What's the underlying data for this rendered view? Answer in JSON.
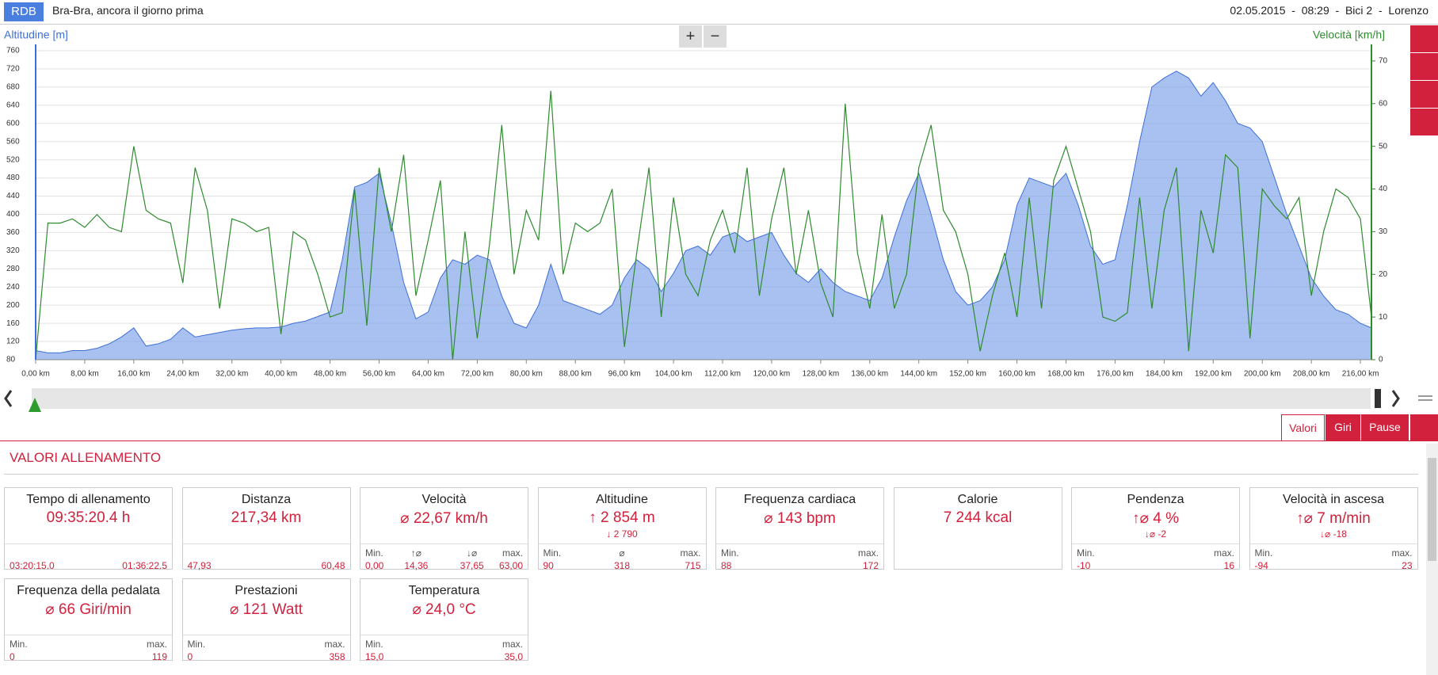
{
  "header": {
    "badge": "RDB",
    "title": "Bra-Bra, ancora il giorno prima",
    "info": "02.05.2015  -  08:29  -  Bici 2  -  Lorenzo"
  },
  "controls": {
    "zoom_in": "+",
    "zoom_out": "−"
  },
  "chart_data": {
    "type": "area",
    "ylabel": "Altitudine [m]",
    "y2label": "Velocità [km/h]",
    "xlim": [
      0,
      217.8
    ],
    "ylim": [
      80,
      760
    ],
    "y2lim": [
      0,
      72.4
    ],
    "grid": true,
    "xticks": [
      {
        "value": 0,
        "label": "0,00 km"
      },
      {
        "value": 8,
        "label": "8,00 km"
      },
      {
        "value": 16,
        "label": "16,00 km"
      },
      {
        "value": 24,
        "label": "24,00 km"
      },
      {
        "value": 32,
        "label": "32,00 km"
      },
      {
        "value": 40,
        "label": "40,00 km"
      },
      {
        "value": 48,
        "label": "48,00 km"
      },
      {
        "value": 56,
        "label": "56,00 km"
      },
      {
        "value": 64,
        "label": "64,00 km"
      },
      {
        "value": 72,
        "label": "72,00 km"
      },
      {
        "value": 80,
        "label": "80,00 km"
      },
      {
        "value": 88,
        "label": "88,00 km"
      },
      {
        "value": 96,
        "label": "96,00 km"
      },
      {
        "value": 104,
        "label": "104,00 km"
      },
      {
        "value": 112,
        "label": "112,00 km"
      },
      {
        "value": 120,
        "label": "120,00 km"
      },
      {
        "value": 128,
        "label": "128,00 km"
      },
      {
        "value": 136,
        "label": "136,00 km"
      },
      {
        "value": 144,
        "label": "144,00 km"
      },
      {
        "value": 152,
        "label": "152,00 km"
      },
      {
        "value": 160,
        "label": "160,00 km"
      },
      {
        "value": 168,
        "label": "168,00 km"
      },
      {
        "value": 176,
        "label": "176,00 km"
      },
      {
        "value": 184,
        "label": "184,00 km"
      },
      {
        "value": 192,
        "label": "192,00 km"
      },
      {
        "value": 200,
        "label": "200,00 km"
      },
      {
        "value": 208,
        "label": "208,00 km"
      },
      {
        "value": 216,
        "label": "216,00 km"
      }
    ],
    "yticks": [
      80,
      120,
      160,
      200,
      240,
      280,
      320,
      360,
      400,
      440,
      480,
      520,
      560,
      600,
      640,
      680,
      720,
      760
    ],
    "y2ticks": [
      0,
      10,
      20,
      30,
      40,
      50,
      60,
      70
    ],
    "x": [
      0,
      2,
      4,
      6,
      8,
      10,
      12,
      14,
      16,
      18,
      20,
      22,
      24,
      26,
      28,
      30,
      32,
      34,
      36,
      38,
      40,
      42,
      44,
      46,
      48,
      50,
      52,
      54,
      56,
      58,
      60,
      62,
      64,
      66,
      68,
      70,
      72,
      74,
      76,
      78,
      80,
      82,
      84,
      86,
      88,
      90,
      92,
      94,
      96,
      98,
      100,
      102,
      104,
      106,
      108,
      110,
      112,
      114,
      116,
      118,
      120,
      122,
      124,
      126,
      128,
      130,
      132,
      134,
      136,
      138,
      140,
      142,
      144,
      146,
      148,
      150,
      152,
      154,
      156,
      158,
      160,
      162,
      164,
      166,
      168,
      170,
      172,
      174,
      176,
      178,
      180,
      182,
      184,
      186,
      188,
      190,
      192,
      194,
      196,
      198,
      200,
      202,
      204,
      206,
      208,
      210,
      212,
      214,
      216,
      217.8
    ],
    "series": [
      {
        "name": "Altitudine",
        "type": "area",
        "color": "#3d6fd6",
        "values": [
          100,
          95,
          95,
          100,
          100,
          105,
          115,
          130,
          150,
          110,
          115,
          125,
          150,
          130,
          135,
          140,
          145,
          148,
          150,
          150,
          152,
          160,
          165,
          175,
          185,
          300,
          460,
          470,
          490,
          380,
          250,
          170,
          185,
          260,
          300,
          290,
          310,
          300,
          220,
          160,
          150,
          200,
          290,
          210,
          200,
          190,
          180,
          200,
          260,
          300,
          280,
          230,
          270,
          320,
          330,
          310,
          350,
          360,
          340,
          350,
          360,
          310,
          270,
          250,
          280,
          250,
          230,
          220,
          210,
          260,
          350,
          430,
          490,
          400,
          300,
          230,
          200,
          210,
          240,
          300,
          420,
          480,
          470,
          460,
          490,
          420,
          330,
          290,
          300,
          420,
          560,
          680,
          700,
          715,
          700,
          660,
          690,
          650,
          600,
          590,
          560,
          480,
          400,
          330,
          260,
          220,
          190,
          180,
          160,
          150
        ]
      },
      {
        "name": "Velocità",
        "type": "line",
        "axis": "y2",
        "color": "#2e8b2e",
        "values": [
          0,
          32,
          32,
          33,
          31,
          34,
          31,
          30,
          50,
          35,
          33,
          32,
          18,
          45,
          35,
          12,
          33,
          32,
          30,
          31,
          6,
          30,
          28,
          20,
          10,
          11,
          40,
          8,
          45,
          30,
          48,
          15,
          28,
          42,
          0,
          30,
          5,
          27,
          55,
          20,
          35,
          28,
          63,
          20,
          32,
          30,
          32,
          40,
          3,
          25,
          45,
          10,
          38,
          20,
          15,
          28,
          35,
          25,
          45,
          15,
          33,
          45,
          20,
          35,
          18,
          10,
          60,
          25,
          12,
          34,
          12,
          20,
          45,
          55,
          35,
          30,
          20,
          2,
          15,
          25,
          10,
          38,
          12,
          42,
          50,
          40,
          30,
          10,
          9,
          11,
          38,
          12,
          35,
          45,
          2,
          35,
          25,
          48,
          45,
          5,
          40,
          36,
          33,
          38,
          15,
          30,
          40,
          38,
          33,
          10
        ]
      }
    ]
  },
  "tabs": [
    "Valori",
    "Giri",
    "Pause"
  ],
  "section_title": "VALORI ALLENAMENTO",
  "cards": [
    {
      "title": "Tempo di allenamento",
      "main": "09:35:20.4 h",
      "footer": [
        {
          "value": "03:20:15.0"
        },
        {
          "value": "01:36:22.5"
        }
      ]
    },
    {
      "title": "Distanza",
      "main": "217,34 km",
      "footer": [
        {
          "value": "47,93"
        },
        {
          "value": "60,48"
        }
      ]
    },
    {
      "title": "Velocità",
      "main": "⌀ 22,67 km/h",
      "footer": [
        {
          "label": "Min.",
          "value": "0,00"
        },
        {
          "label": "↑⌀",
          "value": "14,36"
        },
        {
          "label": "↓⌀",
          "value": "37,65"
        },
        {
          "label": "max.",
          "value": "63,00"
        }
      ]
    },
    {
      "title": "Altitudine",
      "main": "↑ 2 854 m",
      "sub": "↓ 2 790",
      "footer": [
        {
          "label": "Min.",
          "value": "90"
        },
        {
          "label": "⌀",
          "value": "318"
        },
        {
          "label": "max.",
          "value": "715"
        }
      ]
    },
    {
      "title": "Frequenza cardiaca",
      "main": "⌀ 143 bpm",
      "footer": [
        {
          "label": "Min.",
          "value": "88"
        },
        {
          "label": "max.",
          "value": "172"
        }
      ]
    },
    {
      "title": "Calorie",
      "main": "7 244 kcal"
    },
    {
      "title": "Pendenza",
      "main": "↑⌀ 4 %",
      "sub": "↓⌀ -2",
      "footer": [
        {
          "label": "Min.",
          "value": "-10"
        },
        {
          "label": "max.",
          "value": "16"
        }
      ]
    },
    {
      "title": "Velocità in ascesa",
      "main": "↑⌀ 7 m/min",
      "sub": "↓⌀ -18",
      "footer": [
        {
          "label": "Min.",
          "value": "-94"
        },
        {
          "label": "max.",
          "value": "23"
        }
      ]
    },
    {
      "title": "Frequenza della pedalata",
      "main": "⌀ 66 Giri/min",
      "footer": [
        {
          "label": "Min.",
          "value": "0"
        },
        {
          "label": "max.",
          "value": "119"
        }
      ]
    },
    {
      "title": "Prestazioni",
      "main": "⌀ 121 Watt",
      "footer": [
        {
          "label": "Min.",
          "value": "0"
        },
        {
          "label": "max.",
          "value": "358"
        }
      ]
    },
    {
      "title": "Temperatura",
      "main": "⌀ 24,0 °C",
      "footer": [
        {
          "label": "Min.",
          "value": "15,0"
        },
        {
          "label": "max.",
          "value": "35,0"
        }
      ]
    }
  ]
}
